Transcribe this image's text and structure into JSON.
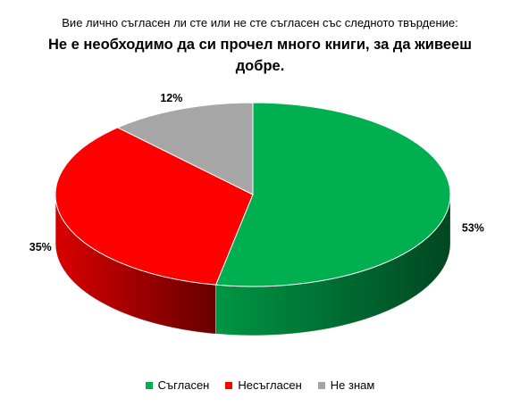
{
  "chart_data": {
    "type": "pie",
    "subtitle": "Вие лично съгласен ли сте или не сте съгласен със следното твърдение:",
    "title": "Не е необходимо да си прочел много книги, за да живееш добре.",
    "categories": [
      "Съгласен",
      "Несъгласен",
      "Не знам"
    ],
    "values": [
      53,
      35,
      12
    ],
    "value_labels": [
      "53%",
      "35%",
      "12%"
    ],
    "colors": [
      "#00b050",
      "#ff0000",
      "#a6a6a6"
    ],
    "legend": "bottom"
  }
}
